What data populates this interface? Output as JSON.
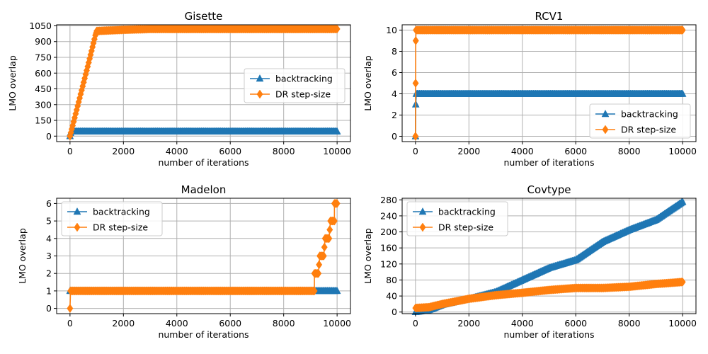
{
  "colors": {
    "backtracking": "#1f77b4",
    "dr": "#ff7f0e"
  },
  "chart_data": [
    {
      "type": "line",
      "title": "Gisette",
      "xlabel": "number of iterations",
      "ylabel": "LMO overlap",
      "xlim": [
        -500,
        10500
      ],
      "ylim": [
        -52,
        1060
      ],
      "xticks": [
        0,
        2000,
        4000,
        6000,
        8000,
        10000
      ],
      "yticks": [
        0,
        150,
        300,
        450,
        600,
        750,
        900,
        1050
      ],
      "legend": "center-right",
      "series": [
        {
          "name": "backtracking",
          "marker": "triangle",
          "points": [
            [
              0,
              0
            ],
            [
              20,
              30
            ],
            [
              60,
              45
            ],
            [
              150,
              45
            ],
            [
              2000,
              45
            ],
            [
              6000,
              45
            ],
            [
              10000,
              45
            ]
          ]
        },
        {
          "name": "DR step-size",
          "marker": "diamond",
          "points": [
            [
              0,
              0
            ],
            [
              100,
              100
            ],
            [
              400,
              400
            ],
            [
              700,
              700
            ],
            [
              950,
              960
            ],
            [
              1000,
              1000
            ],
            [
              1100,
              1002
            ],
            [
              2000,
              1012
            ],
            [
              3000,
              1020
            ],
            [
              10000,
              1020
            ]
          ]
        }
      ]
    },
    {
      "type": "line",
      "title": "RCV1",
      "xlabel": "number of iterations",
      "ylabel": "LMO overlap",
      "xlim": [
        -500,
        10500
      ],
      "ylim": [
        -0.5,
        10.5
      ],
      "xticks": [
        0,
        2000,
        4000,
        6000,
        8000,
        10000
      ],
      "yticks": [
        0,
        2,
        4,
        6,
        8,
        10
      ],
      "legend": "lower-right",
      "series": [
        {
          "name": "backtracking",
          "marker": "triangle",
          "points": [
            [
              0,
              0
            ],
            [
              10,
              3
            ],
            [
              30,
              4
            ],
            [
              10000,
              4
            ]
          ]
        },
        {
          "name": "DR step-size",
          "marker": "diamond",
          "points": [
            [
              0,
              0
            ],
            [
              5,
              5
            ],
            [
              10,
              9
            ],
            [
              20,
              10
            ],
            [
              10000,
              10
            ]
          ]
        }
      ]
    },
    {
      "type": "line",
      "title": "Madelon",
      "xlabel": "number of iterations",
      "ylabel": "LMO overlap",
      "xlim": [
        -500,
        10500
      ],
      "ylim": [
        -0.3,
        6.3
      ],
      "xticks": [
        0,
        2000,
        4000,
        6000,
        8000,
        10000
      ],
      "yticks": [
        0,
        1,
        2,
        3,
        4,
        5,
        6
      ],
      "legend": "upper-left",
      "series": [
        {
          "name": "backtracking",
          "marker": "triangle",
          "points": [
            [
              0,
              1
            ],
            [
              10000,
              1
            ]
          ]
        },
        {
          "name": "DR step-size",
          "marker": "diamond",
          "points": [
            [
              0,
              0
            ],
            [
              20,
              1
            ],
            [
              9150,
              1
            ],
            [
              9150,
              2
            ],
            [
              9300,
              2
            ],
            [
              9350,
              3
            ],
            [
              9500,
              3
            ],
            [
              9550,
              4
            ],
            [
              9700,
              4
            ],
            [
              9750,
              5
            ],
            [
              9900,
              5
            ],
            [
              9900,
              6
            ],
            [
              10000,
              6
            ]
          ]
        }
      ]
    },
    {
      "type": "line",
      "title": "Covtype",
      "xlabel": "number of iterations",
      "ylabel": "LMO overlap",
      "xlim": [
        -500,
        10500
      ],
      "ylim": [
        -4,
        284
      ],
      "xticks": [
        0,
        2000,
        4000,
        6000,
        8000,
        10000
      ],
      "yticks": [
        0,
        40,
        80,
        120,
        160,
        200,
        240,
        280
      ],
      "legend": "upper-left",
      "series": [
        {
          "name": "backtracking",
          "marker": "triangle",
          "points": [
            [
              0,
              0
            ],
            [
              500,
              5
            ],
            [
              1000,
              18
            ],
            [
              2000,
              33
            ],
            [
              3000,
              50
            ],
            [
              4000,
              80
            ],
            [
              5000,
              110
            ],
            [
              6000,
              130
            ],
            [
              7000,
              175
            ],
            [
              8000,
              205
            ],
            [
              9000,
              230
            ],
            [
              10000,
              275
            ]
          ]
        },
        {
          "name": "DR step-size",
          "marker": "diamond",
          "points": [
            [
              0,
              10
            ],
            [
              500,
              12
            ],
            [
              1000,
              20
            ],
            [
              2000,
              33
            ],
            [
              3000,
              42
            ],
            [
              4000,
              48
            ],
            [
              5000,
              55
            ],
            [
              6000,
              60
            ],
            [
              7000,
              60
            ],
            [
              8000,
              63
            ],
            [
              9000,
              70
            ],
            [
              10000,
              75
            ]
          ]
        }
      ]
    }
  ]
}
